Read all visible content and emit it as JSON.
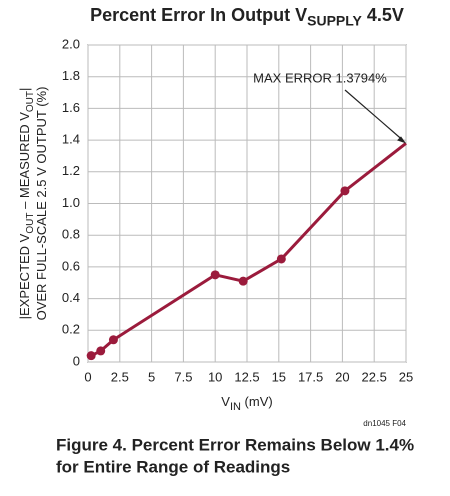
{
  "chart_data": {
    "type": "line",
    "title": [
      "Percent Error In Output V",
      "SUPPLY",
      " 4.5V"
    ],
    "xlabel": [
      "V",
      "IN",
      " (mV)"
    ],
    "ylabel": [
      [
        "|EXPECTED V",
        "OUT",
        " – MEASURED V",
        "OUT",
        "|"
      ],
      [
        "OVER FULL-SCALE 2.5 V OUTPUT (%)"
      ]
    ],
    "x": [
      0.25,
      1,
      2,
      10,
      12.2,
      15.2,
      20.2,
      25
    ],
    "series": [
      {
        "name": "Percent Error",
        "color": "#9b1b3c",
        "values": [
          0.04,
          0.07,
          0.14,
          0.55,
          0.51,
          0.65,
          1.08,
          1.3794
        ]
      }
    ],
    "annotation": "MAX ERROR 1.3794%",
    "xlim": [
      0,
      25
    ],
    "xticks": [
      0,
      2.5,
      5,
      7.5,
      10,
      12.5,
      15,
      17.5,
      20,
      22.5,
      25
    ],
    "ylim": [
      0,
      2
    ],
    "yticks": [
      0,
      0.2,
      0.4,
      0.6,
      0.8,
      {
        "value": 1,
        "label": "1.0"
      },
      1.2,
      1.4,
      1.6,
      1.8,
      {
        "value": 2,
        "label": "2.0"
      }
    ],
    "grid": true,
    "code": "dn1045 F04",
    "caption": [
      "Figure 4. Percent Error Remains Below 1.4%",
      "for Entire Range of Readings"
    ]
  }
}
